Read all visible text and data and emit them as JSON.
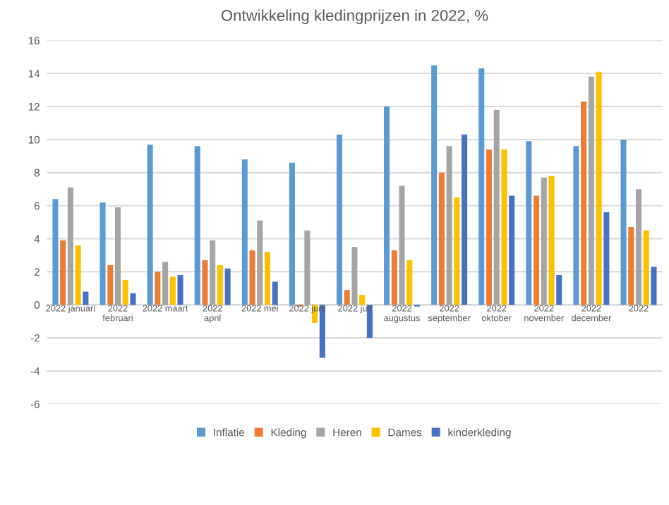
{
  "chart_data": {
    "type": "bar",
    "title": "Ontwikkeling kledingprijzen in 2022, %",
    "categories": [
      "2022 januari",
      "2022\nfebruari",
      "2022 maart",
      "2022\napril",
      "2022 mei",
      "2022 juni",
      "2022 juli",
      "2022\naugustus",
      "2022\nseptember",
      "2022\noktober",
      "2022\nnovember",
      "2022\ndecember",
      "2022"
    ],
    "series": [
      {
        "name": "Inflatie",
        "color": "#5b9bd5",
        "values": [
          6.4,
          6.2,
          9.7,
          9.6,
          8.8,
          8.6,
          10.3,
          12.0,
          14.5,
          14.3,
          9.9,
          9.6,
          10.0
        ]
      },
      {
        "name": "Kleding",
        "color": "#ed7d31",
        "values": [
          3.9,
          2.4,
          2.0,
          2.7,
          3.3,
          -0.1,
          0.9,
          3.3,
          8.0,
          9.4,
          6.6,
          12.3,
          4.7
        ]
      },
      {
        "name": "Heren",
        "color": "#a5a5a5",
        "values": [
          7.1,
          5.9,
          2.6,
          3.9,
          5.1,
          4.5,
          3.5,
          7.2,
          9.6,
          11.8,
          7.7,
          13.8,
          7.0
        ]
      },
      {
        "name": "Dames",
        "color": "#ffc000",
        "values": [
          3.6,
          1.5,
          1.7,
          2.4,
          3.2,
          -1.1,
          0.6,
          2.7,
          6.5,
          9.4,
          7.8,
          14.1,
          4.5
        ]
      },
      {
        "name": "kinderkleding",
        "color": "#4472c4",
        "values": [
          0.8,
          0.7,
          1.8,
          2.2,
          1.4,
          -3.2,
          -2.0,
          -0.1,
          10.3,
          6.6,
          1.8,
          5.6,
          2.3
        ]
      }
    ],
    "ylim": [
      -6,
      16
    ],
    "yticks": [
      -6,
      -4,
      -2,
      0,
      2,
      4,
      6,
      8,
      10,
      12,
      14,
      16
    ],
    "grid": "y",
    "legend": "bottom"
  }
}
